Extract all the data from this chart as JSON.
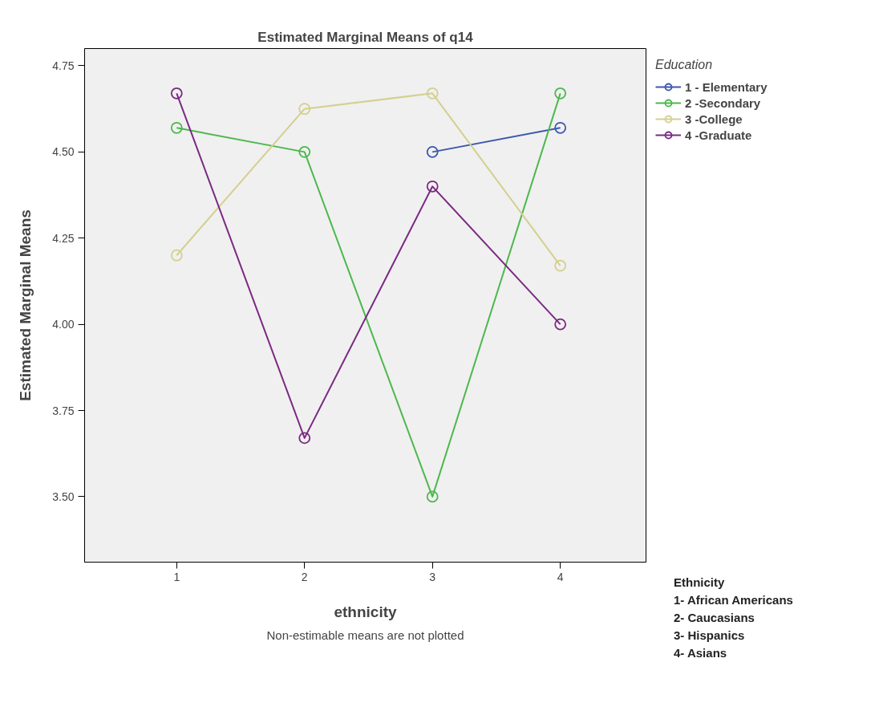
{
  "chart_data": {
    "type": "line",
    "title": "Estimated Marginal Means of q14",
    "xlabel": "ethnicity",
    "ylabel": "Estimated Marginal Means",
    "legend_title": "Education",
    "x": [
      1,
      2,
      3,
      4
    ],
    "xlim": [
      0.28,
      4.67
    ],
    "xticks": [
      1,
      2,
      3,
      4
    ],
    "series": [
      {
        "name": "1 - Elementary",
        "color": "#3e58ac",
        "values": [
          null,
          null,
          4.5,
          4.57
        ]
      },
      {
        "name": "2 -Secondary",
        "color": "#4cb84c",
        "values": [
          4.57,
          4.5,
          3.5,
          4.67
        ]
      },
      {
        "name": "3 -College",
        "color": "#d4cf8f",
        "values": [
          4.2,
          4.625,
          4.67,
          4.17
        ]
      },
      {
        "name": "4 -Graduate",
        "color": "#7a2a82",
        "values": [
          4.67,
          3.67,
          4.4,
          4.0
        ]
      }
    ],
    "ylim": [
      3.31,
      4.8
    ],
    "yticks": [
      {
        "value": 3.5,
        "label": "3.50"
      },
      {
        "value": 3.75,
        "label": "3.75"
      },
      {
        "value": 4.0,
        "label": "4.00"
      },
      {
        "value": 4.25,
        "label": "4.25"
      },
      {
        "value": 4.5,
        "label": "4.50"
      },
      {
        "value": 4.75,
        "label": "4.75"
      }
    ],
    "annotations": [
      "Ethnicity",
      "1- African Americans",
      "2- Caucasians",
      "3- Hispanics",
      "4- Asians",
      "Non-estimable means are not plotted"
    ],
    "marker": "circle",
    "line_style": "solid",
    "legend": "right",
    "grid": false
  }
}
